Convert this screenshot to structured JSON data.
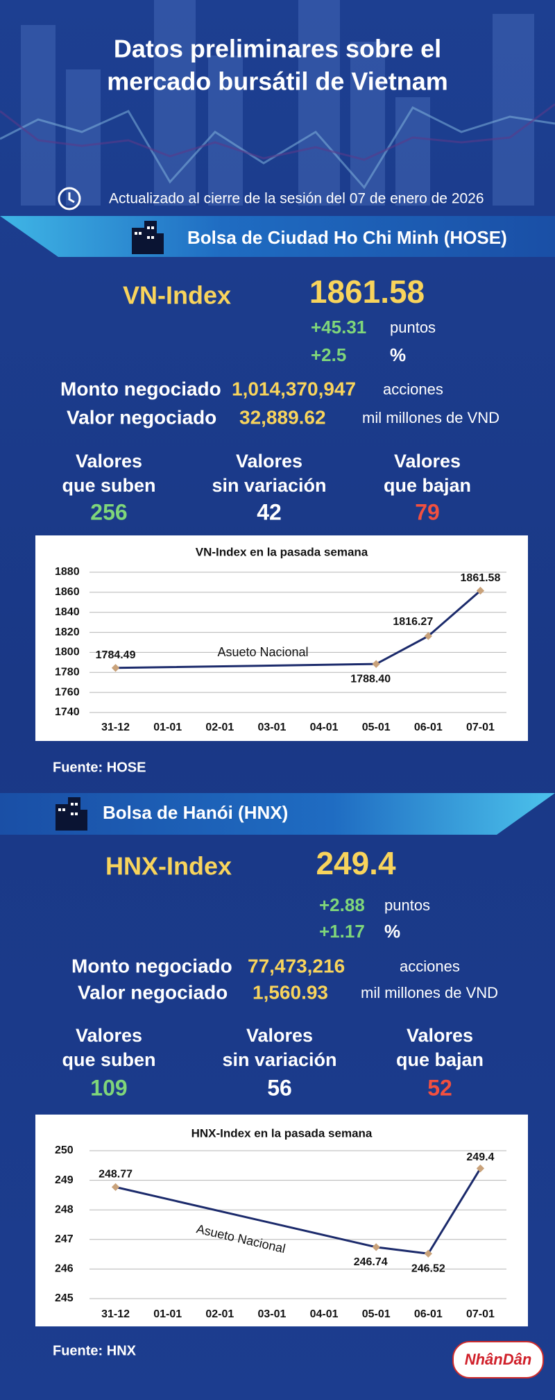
{
  "header": {
    "title": [
      "Datos preliminares sobre el",
      "mercado bursátil de Vietnam"
    ],
    "updated": "Actualizado al cierre de la sesión del 07 de enero de 2026"
  },
  "sections": [
    {
      "exchange": "Bolsa de Ciudad Ho Chi Minh (HOSE)",
      "index_name": "VN-Index",
      "index_value": "1861.58",
      "change_points": "+45.31",
      "points_unit": "puntos",
      "change_percent": "+2.5",
      "percent_unit": "%",
      "volume_label": "Monto negociado",
      "volume": "1,014,370,947",
      "volume_unit": "acciones",
      "value_label": "Valor negociado",
      "value": "32,889.62",
      "value_unit": "mil millones de VND",
      "breadth": [
        {
          "label": [
            "Valores",
            "que suben"
          ],
          "count": 256,
          "color": "#7fd67a"
        },
        {
          "label": [
            "Valores",
            "sin variación"
          ],
          "count": 42,
          "color": "#ffffff"
        },
        {
          "label": [
            "Valores",
            "que bajan"
          ],
          "count": 79,
          "color": "#f2503f"
        }
      ],
      "source": "Fuente: HOSE"
    },
    {
      "exchange": "Bolsa de Hanói (HNX)",
      "index_name": "HNX-Index",
      "index_value": "249.4",
      "change_points": "+2.88",
      "points_unit": "puntos",
      "change_percent": "+1.17",
      "percent_unit": "%",
      "volume_label": "Monto negociado",
      "volume": "77,473,216",
      "volume_unit": "acciones",
      "value_label": "Valor negociado",
      "value": "1,560.93",
      "value_unit": "mil millones de VND",
      "breadth": [
        {
          "label": [
            "Valores",
            "que suben"
          ],
          "count": 109,
          "color": "#7fd67a"
        },
        {
          "label": [
            "Valores",
            "sin variación"
          ],
          "count": 56,
          "color": "#ffffff"
        },
        {
          "label": [
            "Valores",
            "que bajan"
          ],
          "count": 52,
          "color": "#f2503f"
        }
      ],
      "source": "Fuente: HNX"
    }
  ],
  "chart_data": [
    {
      "type": "line",
      "title": "VN-Index en la pasada semana",
      "categories": [
        "31-12",
        "01-01",
        "02-01",
        "03-01",
        "04-01",
        "05-01",
        "06-01",
        "07-01"
      ],
      "values": [
        1784.49,
        null,
        null,
        null,
        null,
        1788.4,
        1816.27,
        1861.58
      ],
      "value_labels": [
        "1784.49",
        null,
        null,
        null,
        null,
        "1788.40",
        "1816.27",
        "1861.58"
      ],
      "color": "#1b2a6b",
      "marker_color": "#c9a27a",
      "connect_gaps": true,
      "annotation": "Asueto Nacional",
      "ylim": [
        1740,
        1880
      ],
      "yticks": [
        1740,
        1760,
        1780,
        1800,
        1820,
        1840,
        1860,
        1880
      ],
      "grid": true
    },
    {
      "type": "line",
      "title": "HNX-Index en la pasada semana",
      "categories": [
        "31-12",
        "01-01",
        "02-01",
        "03-01",
        "04-01",
        "05-01",
        "06-01",
        "07-01"
      ],
      "values": [
        248.77,
        null,
        null,
        null,
        null,
        246.74,
        246.52,
        249.4
      ],
      "value_labels": [
        "248.77",
        null,
        null,
        null,
        null,
        "246.74",
        "246.52",
        "249.4"
      ],
      "color": "#1b2a6b",
      "marker_color": "#c9a27a",
      "connect_gaps": true,
      "annotation": "Asueto Nacional",
      "ylim": [
        245,
        250
      ],
      "yticks": [
        245,
        246,
        247,
        248,
        249,
        250
      ],
      "grid": true
    }
  ],
  "logo": "NhânDân"
}
